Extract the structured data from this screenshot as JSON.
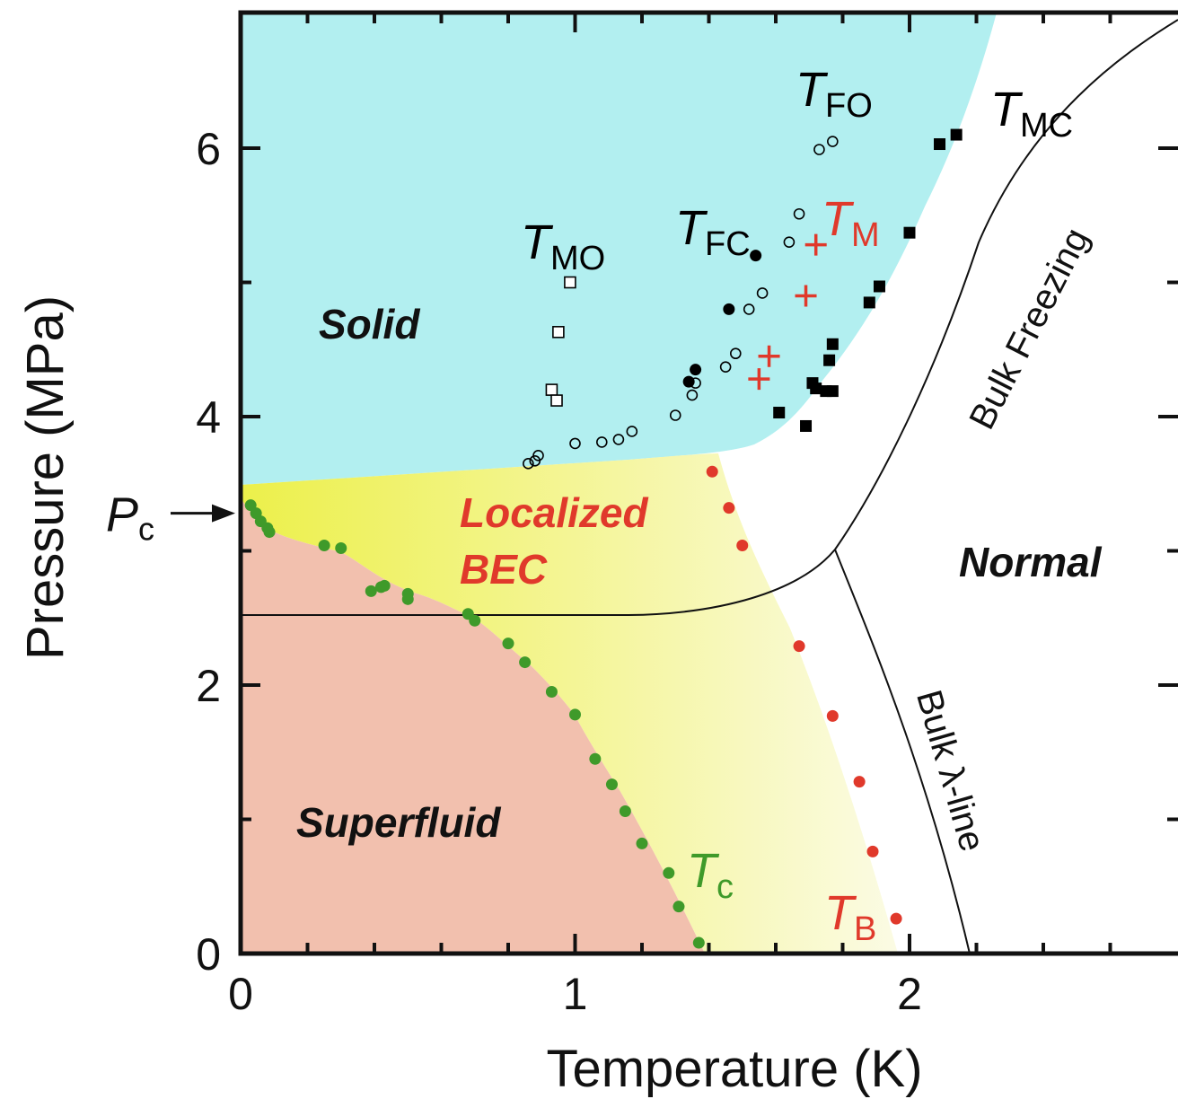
{
  "chart_data": {
    "type": "scatter",
    "x_label": "Temperature (K)",
    "y_label": "Pressure (MPa)",
    "xlim": [
      0,
      2.8
    ],
    "ylim": [
      0,
      7
    ],
    "xticks": [
      0,
      1,
      2
    ],
    "yticks": [
      0,
      2,
      4,
      6
    ],
    "xminor_ticks": [
      0.2,
      0.4,
      0.6,
      0.8,
      1.2,
      1.4,
      1.6,
      1.8,
      2.2,
      2.4,
      2.6
    ],
    "yminor_ticks": [
      1,
      3,
      5
    ],
    "region_labels": [
      "Solid",
      "Localized",
      "BEC",
      "Normal",
      "Superfluid"
    ],
    "line_labels": [
      "Bulk Freezing",
      "Bulk λ-line"
    ],
    "pc": {
      "label": "P",
      "sub": "c",
      "value": 3.28
    },
    "series": [
      {
        "name": "T",
        "sub": "c",
        "color": "#3f9a2a",
        "marker": "filled-circle",
        "x": [
          0.03,
          0.046,
          0.06,
          0.08,
          0.086,
          0.25,
          0.3,
          0.39,
          0.42,
          0.43,
          0.5,
          0.5,
          0.68,
          0.7,
          0.8,
          0.85,
          0.93,
          1.0,
          1.06,
          1.11,
          1.15,
          1.2,
          1.28,
          1.31,
          1.37
        ],
        "y": [
          3.34,
          3.28,
          3.22,
          3.17,
          3.14,
          3.04,
          3.02,
          2.7,
          2.73,
          2.74,
          2.68,
          2.64,
          2.53,
          2.48,
          2.31,
          2.17,
          1.95,
          1.78,
          1.45,
          1.26,
          1.06,
          0.82,
          0.6,
          0.35,
          0.08
        ]
      },
      {
        "name": "T",
        "sub": "B",
        "color": "#e0392b",
        "marker": "filled-circle",
        "x": [
          1.41,
          1.46,
          1.5,
          1.67,
          1.77,
          1.85,
          1.89,
          1.96
        ],
        "y": [
          3.59,
          3.32,
          3.04,
          2.29,
          1.77,
          1.28,
          0.76,
          0.26
        ]
      },
      {
        "name": "T",
        "sub": "M",
        "color": "#e0392b",
        "marker": "plus",
        "x": [
          1.72,
          1.69,
          1.58,
          1.55
        ],
        "y": [
          5.28,
          4.9,
          4.45,
          4.28
        ]
      },
      {
        "name": "T",
        "sub": "FC",
        "color": "#000000",
        "marker": "filled-circle",
        "x": [
          1.54,
          1.46,
          1.36,
          1.34
        ],
        "y": [
          5.2,
          4.8,
          4.35,
          4.26
        ]
      },
      {
        "name": "T",
        "sub": "FO",
        "color": "#000000",
        "marker": "open-circle",
        "x": [
          1.77,
          1.73,
          1.67,
          1.64,
          1.56,
          1.52,
          1.48,
          1.45,
          1.36,
          1.35,
          1.3,
          1.17,
          1.13,
          1.08,
          1.0,
          0.89,
          0.88,
          0.86
        ],
        "y": [
          6.05,
          5.99,
          5.51,
          5.3,
          4.92,
          4.8,
          4.47,
          4.37,
          4.25,
          4.16,
          4.01,
          3.89,
          3.83,
          3.81,
          3.8,
          3.71,
          3.67,
          3.65
        ]
      },
      {
        "name": "T",
        "sub": "MO",
        "color": "#000000",
        "marker": "open-square",
        "x": [
          0.985,
          0.95,
          0.93,
          0.945
        ],
        "y": [
          5.0,
          4.63,
          4.2,
          4.12
        ]
      },
      {
        "name": "T",
        "sub": "MC",
        "color": "#000000",
        "marker": "filled-square",
        "x": [
          2.14,
          2.09,
          2.0,
          1.91,
          1.88,
          1.77,
          1.76,
          1.71,
          1.72,
          1.75,
          1.77,
          1.61,
          1.69
        ],
        "y": [
          6.1,
          6.03,
          5.37,
          4.97,
          4.85,
          4.54,
          4.42,
          4.25,
          4.21,
          4.19,
          4.19,
          4.03,
          3.93
        ]
      }
    ]
  }
}
